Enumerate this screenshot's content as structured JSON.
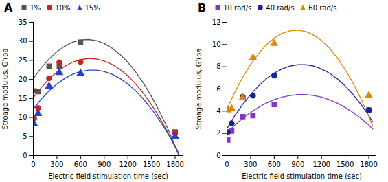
{
  "chart_data": [
    {
      "type": "scatter",
      "title": "A",
      "xlabel": "Electric field stimulation time (sec)",
      "ylabel": "Stroage modulus, G'(pa",
      "xlim": [
        0,
        1900
      ],
      "ylim": [
        0,
        35
      ],
      "xticks": [
        0,
        300,
        600,
        900,
        1200,
        1500,
        1800
      ],
      "yticks": [
        0,
        5,
        10,
        15,
        20,
        25,
        30,
        35
      ],
      "legend": "upper left",
      "x": [
        10,
        60,
        200,
        330,
        600,
        1800
      ],
      "curve_x": [
        0,
        100,
        200,
        300,
        400,
        500,
        600,
        700,
        800,
        900,
        1000,
        1100,
        1200,
        1300,
        1400,
        1500,
        1600,
        1700,
        1800,
        1850
      ],
      "series": [
        {
          "name": "1%",
          "color": "#555555",
          "marker": "square",
          "line_style": "solid",
          "values": [
            17.0,
            16.8,
            23.5,
            23.4,
            29.8,
            6.2
          ],
          "curve_values": [
            20.21,
            23.02,
            25.37,
            27.29,
            28.76,
            29.78,
            30.36,
            30.49,
            30.18,
            29.42,
            28.22,
            26.58,
            24.48,
            21.95,
            18.97,
            15.54,
            11.67,
            7.35,
            2.59,
            0.04
          ]
        },
        {
          "name": "10%",
          "color": "#cc2222",
          "marker": "circle",
          "line_style": "solid",
          "values": [
            9.8,
            12.5,
            20.3,
            24.5,
            24.6,
            6.0
          ],
          "curve_values": [
            15.17,
            17.84,
            20.11,
            21.98,
            23.46,
            24.54,
            25.21,
            25.49,
            25.37,
            24.85,
            23.94,
            22.62,
            20.91,
            18.79,
            16.28,
            13.37,
            10.06,
            6.35,
            2.25,
            0.04
          ]
        },
        {
          "name": "15%",
          "color": "#2244cc",
          "marker": "triangle",
          "line_style": "solid",
          "values": [
            8.3,
            11.0,
            18.2,
            21.8,
            21.6,
            5.0
          ],
          "curve_values": [
            12.25,
            14.8,
            16.99,
            18.81,
            20.27,
            21.36,
            22.09,
            22.45,
            22.45,
            22.09,
            21.36,
            20.27,
            18.81,
            16.99,
            14.8,
            12.25,
            9.33,
            6.05,
            2.41,
            0.45
          ]
        }
      ]
    },
    {
      "type": "scatter",
      "title": "B",
      "xlabel": "Electric field stimulation time (sec)",
      "ylabel": "Stroage modulus, G'(pa",
      "xlim": [
        0,
        1900
      ],
      "ylim": [
        0,
        12
      ],
      "xticks": [
        0,
        300,
        600,
        900,
        1200,
        1500,
        1800
      ],
      "yticks": [
        0,
        2,
        4,
        6,
        8,
        10,
        12
      ],
      "legend": "upper left",
      "x": [
        10,
        60,
        200,
        330,
        600,
        1800
      ],
      "curve_x": [
        0,
        100,
        200,
        300,
        400,
        500,
        600,
        700,
        800,
        900,
        1000,
        1100,
        1200,
        1300,
        1400,
        1500,
        1600,
        1700,
        1800,
        1850
      ],
      "series": [
        {
          "name": "10 rad/s",
          "color": "#8833cc",
          "marker": "square",
          "line_style": "solid",
          "values": [
            1.4,
            2.2,
            3.5,
            3.6,
            4.6,
            4.1
          ],
          "curve_values": [
            2.05,
            2.74,
            3.35,
            3.88,
            4.34,
            4.73,
            5.03,
            5.26,
            5.41,
            5.49,
            5.49,
            5.41,
            5.26,
            5.03,
            4.73,
            4.34,
            3.88,
            3.35,
            2.74,
            2.4
          ]
        },
        {
          "name": "40 rad/s",
          "color": "#1a2299",
          "marker": "circle",
          "line_style": "solid",
          "values": [
            2.1,
            2.9,
            5.3,
            5.4,
            7.2,
            4.1
          ],
          "curve_values": [
            2.44,
            3.59,
            4.61,
            5.5,
            6.27,
            6.91,
            7.42,
            7.8,
            8.06,
            8.18,
            8.18,
            8.06,
            7.8,
            7.42,
            6.91,
            6.27,
            5.5,
            4.61,
            3.59,
            3.03
          ]
        },
        {
          "name": "60 rad/s",
          "color": "#dd8800",
          "marker": "triangle",
          "line_style": "solid",
          "values": [
            4.1,
            4.2,
            5.2,
            8.8,
            10.1,
            5.4
          ],
          "curve_values": [
            4.17,
            5.7,
            7.05,
            8.2,
            9.18,
            9.97,
            10.58,
            11.0,
            11.24,
            11.3,
            11.17,
            10.85,
            10.36,
            9.68,
            8.81,
            7.76,
            6.53,
            5.11,
            3.51,
            2.64
          ]
        }
      ]
    }
  ]
}
